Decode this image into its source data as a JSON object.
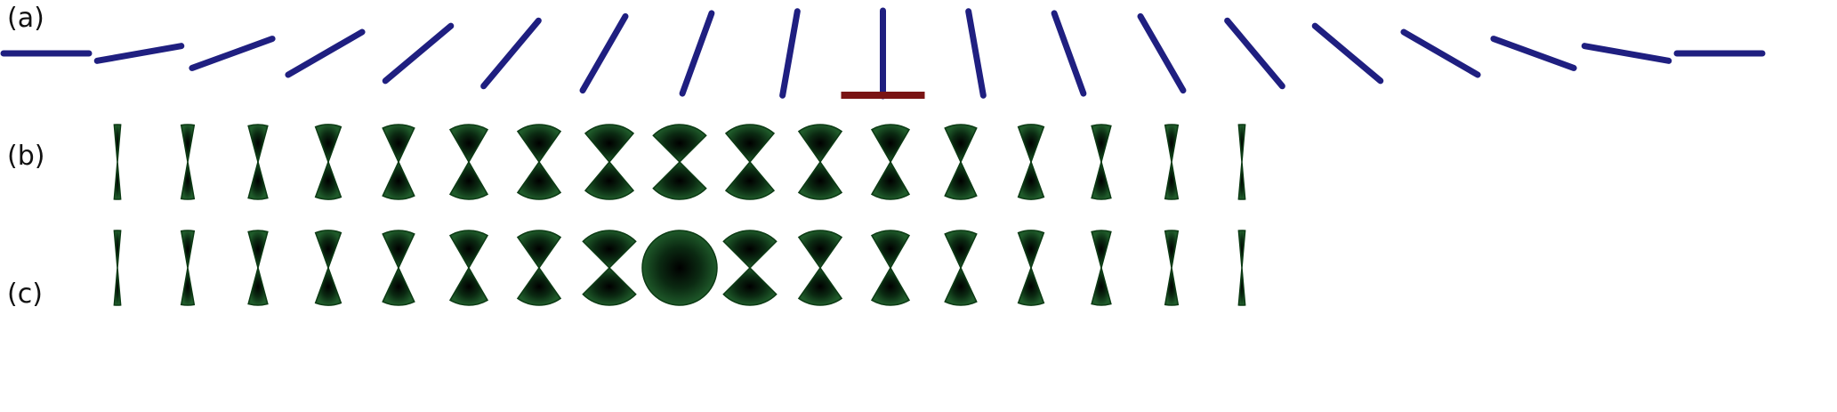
{
  "panels": {
    "a": {
      "label": "(a)"
    },
    "b": {
      "label": "(b)"
    },
    "c": {
      "label": "(c)"
    }
  },
  "rows": {
    "a": {
      "description_kind": "rods",
      "angles_deg": [
        0,
        10,
        20,
        30,
        40,
        50,
        60,
        70,
        80,
        90,
        100,
        110,
        120,
        130,
        140,
        150,
        160,
        170,
        180
      ],
      "reference_bar": true
    },
    "b": {
      "description_kind": "double-cone",
      "half_angles_deg": [
        5,
        10,
        15,
        20,
        25,
        30,
        35,
        40,
        45,
        40,
        35,
        30,
        25,
        20,
        15,
        10,
        5
      ]
    },
    "c": {
      "description_kind": "double-cone",
      "half_angles_deg": [
        5,
        10,
        15,
        20,
        25,
        30,
        35,
        45,
        90,
        45,
        35,
        30,
        25,
        20,
        15,
        10,
        5
      ]
    }
  },
  "colors": {
    "rod": "#1f1f80",
    "rod_edge": "#101050",
    "reference_bar": "#7a1414",
    "cone_center": "#000000",
    "cone_edge": "#1f5a2a",
    "cone_stroke": "#0c3a14",
    "background": "#ffffff"
  }
}
